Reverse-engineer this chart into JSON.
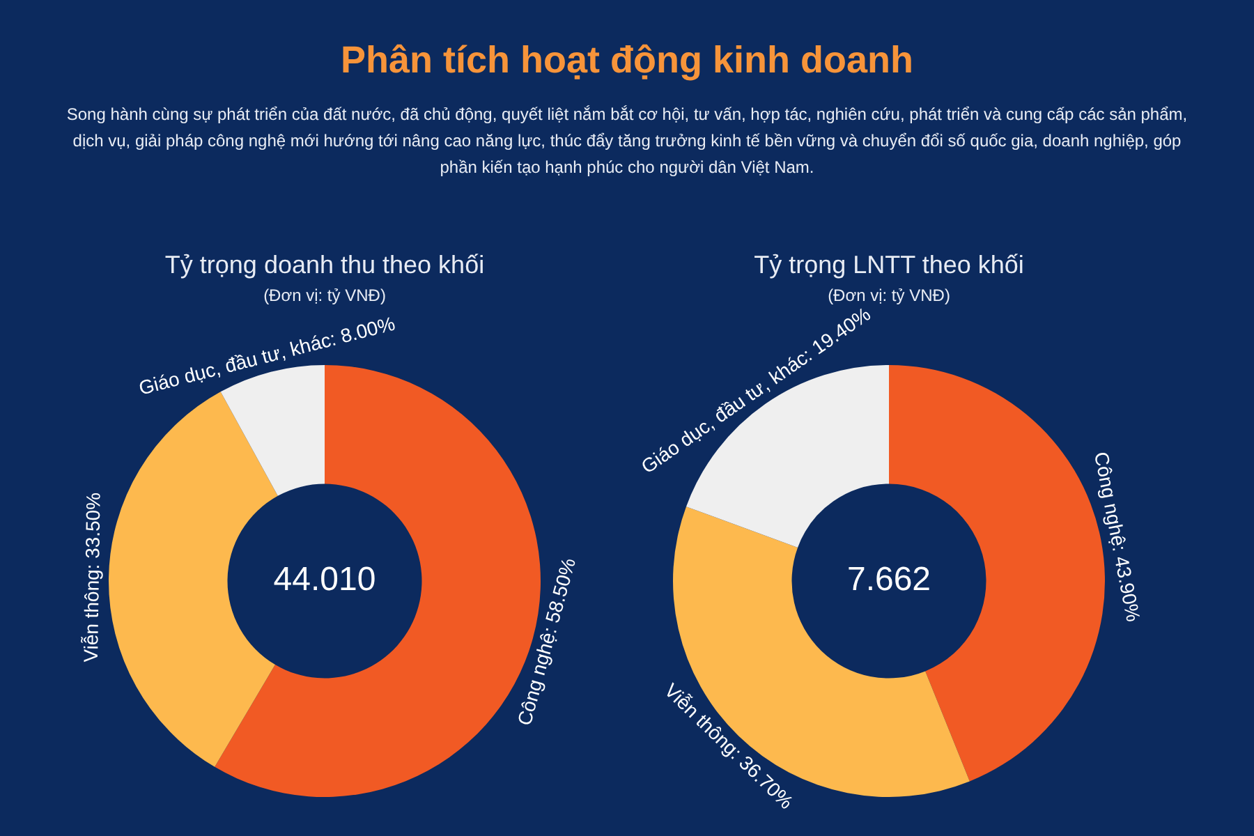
{
  "chart_data": [
    {
      "type": "donut",
      "title": "Tỷ trọng doanh thu theo khối",
      "subtitle": "(Đơn vị: tỷ VNĐ)",
      "categories": [
        "Công nghệ",
        "Viễn thông",
        "Giáo dục, đầu tư, khác"
      ],
      "values": [
        58.5,
        33.5,
        8.0
      ],
      "value_labels": [
        "58.50%",
        "33.50%",
        "8.00%"
      ],
      "colors": [
        "#f15a24",
        "#fdb94e",
        "#efefef"
      ],
      "legend": false,
      "annotations": [
        "Phân tích hoạt động kinh doanh",
        "Song hành cùng sự phát triển của đất nước, đã chủ động, quyết liệt nắm bắt cơ hội, tư vấn, hợp tác, nghiên cứu, phát triển và cung cấp các sản phẩm, dịch vụ, giải pháp công nghệ mới hướng tới nâng cao năng lực, thúc đẩy tăng trưởng kinh tế bền vững và chuyển đổi số quốc gia, doanh nghiệp, góp phần kiến tạo hạnh phúc cho người dân Việt Nam.",
        "44.010"
      ]
    },
    {
      "type": "donut",
      "title": "Tỷ trọng LNTT theo khối",
      "subtitle": "(Đơn vị: tỷ VNĐ)",
      "categories": [
        "Công nghệ",
        "Viễn thông",
        "Giáo dục, đầu tư, khác"
      ],
      "values": [
        43.9,
        36.7,
        19.4
      ],
      "value_labels": [
        "43.90%",
        "36.70%",
        "19.40%"
      ],
      "colors": [
        "#f15a24",
        "#fdb94e",
        "#efefef"
      ],
      "legend": false,
      "annotations": [
        "7.662"
      ]
    }
  ]
}
